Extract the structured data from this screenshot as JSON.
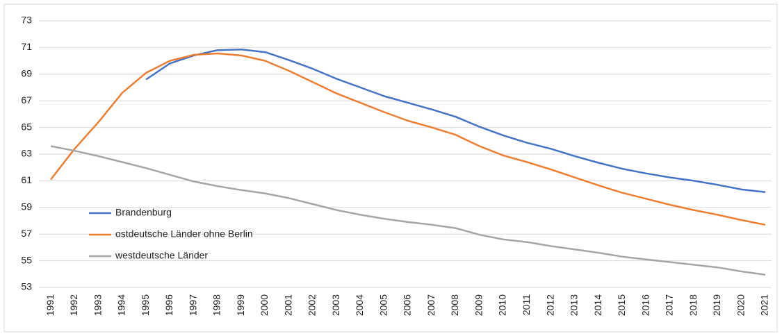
{
  "chart_data": {
    "type": "line",
    "categories": [
      "1991",
      "1992",
      "1993",
      "1994",
      "1995",
      "1996",
      "1997",
      "1998",
      "1999",
      "2000",
      "2001",
      "2002",
      "2003",
      "2004",
      "2005",
      "2006",
      "2007",
      "2008",
      "2009",
      "2010",
      "2011",
      "2012",
      "2013",
      "2014",
      "2015",
      "2016",
      "2017",
      "2018",
      "2019",
      "2020",
      "2021"
    ],
    "series": [
      {
        "name": "Brandenburg",
        "color": "#4472c4",
        "values": [
          null,
          null,
          null,
          null,
          68.6,
          69.8,
          70.4,
          70.8,
          70.85,
          70.65,
          70.05,
          69.4,
          68.65,
          68.0,
          67.35,
          66.85,
          66.35,
          65.8,
          65.05,
          64.4,
          63.85,
          63.4,
          62.85,
          62.35,
          61.9,
          61.55,
          61.25,
          61.0,
          60.7,
          60.35,
          60.15
        ]
      },
      {
        "name": "ostdeutsche Länder ohne Berlin",
        "color": "#ed7d31",
        "values": [
          61.1,
          63.4,
          65.4,
          67.6,
          69.1,
          70.0,
          70.45,
          70.55,
          70.4,
          70.0,
          69.25,
          68.4,
          67.55,
          66.85,
          66.15,
          65.5,
          65.0,
          64.45,
          63.6,
          62.9,
          62.4,
          61.85,
          61.25,
          60.65,
          60.1,
          59.65,
          59.2,
          58.8,
          58.45,
          58.05,
          57.7
        ]
      },
      {
        "name": "westdeutsche Länder",
        "color": "#a5a5a5",
        "values": [
          63.6,
          63.25,
          62.85,
          62.4,
          61.95,
          61.45,
          60.95,
          60.6,
          60.3,
          60.05,
          59.7,
          59.25,
          58.8,
          58.45,
          58.15,
          57.9,
          57.7,
          57.45,
          56.95,
          56.6,
          56.4,
          56.1,
          55.85,
          55.6,
          55.3,
          55.1,
          54.9,
          54.7,
          54.5,
          54.2,
          53.95
        ]
      }
    ],
    "ylim": [
      53,
      73
    ],
    "yticks": [
      53,
      55,
      57,
      59,
      61,
      63,
      65,
      67,
      69,
      71,
      73
    ],
    "grid": true,
    "legend": "lower left"
  }
}
